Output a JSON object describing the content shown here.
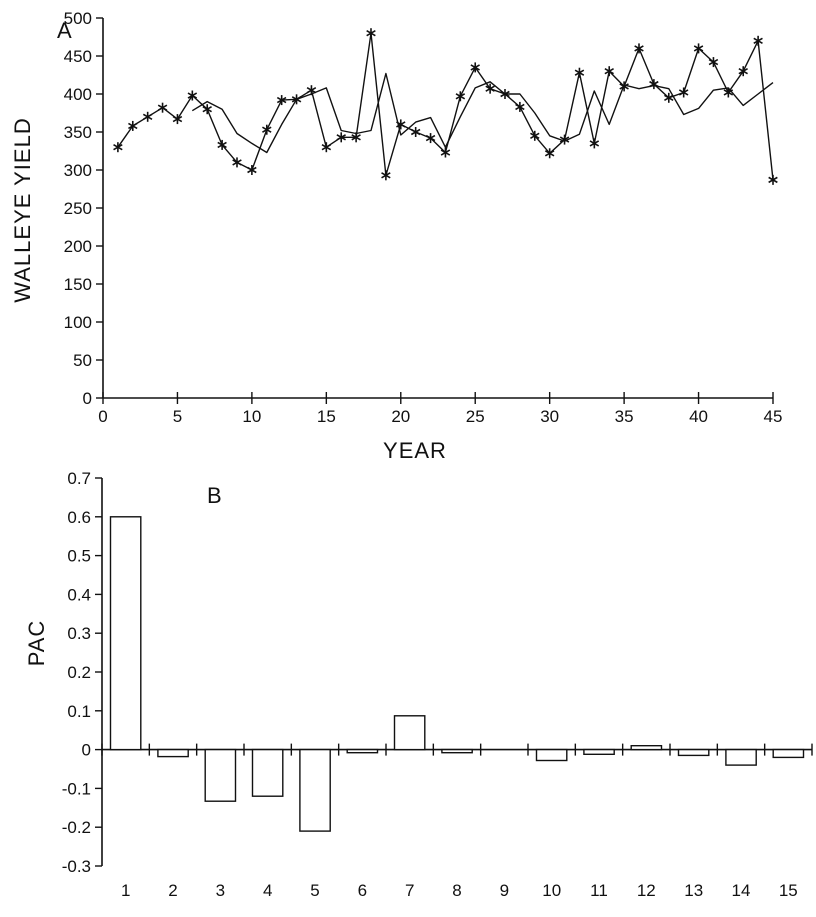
{
  "chart_data": [
    {
      "type": "line",
      "panel_label": "A",
      "xlabel": "YEAR",
      "ylabel": "WALLEYE YIELD",
      "xlim": [
        0,
        45
      ],
      "ylim": [
        0,
        500
      ],
      "xticks": [
        0,
        5,
        10,
        15,
        20,
        25,
        30,
        35,
        40,
        45
      ],
      "yticks": [
        0,
        50,
        100,
        150,
        200,
        250,
        300,
        350,
        400,
        450,
        500
      ],
      "legend": "none",
      "grid": false,
      "series": [
        {
          "marker": "asterisk",
          "x": [
            1,
            2,
            3,
            4,
            5,
            6,
            7,
            8,
            9,
            10,
            11,
            12,
            13,
            14,
            15,
            16,
            17,
            18,
            19,
            20,
            21,
            22,
            23,
            24,
            25,
            26,
            27,
            28,
            29,
            30,
            31,
            32,
            33,
            34,
            35,
            36,
            37,
            38,
            39,
            40,
            41,
            42,
            43,
            44,
            45
          ],
          "y": [
            330,
            358,
            370,
            382,
            367,
            398,
            380,
            333,
            310,
            300,
            353,
            392,
            393,
            405,
            330,
            343,
            343,
            480,
            293,
            360,
            350,
            342,
            323,
            397,
            435,
            407,
            400,
            383,
            345,
            322,
            340,
            428,
            335,
            430,
            410,
            460,
            413,
            395,
            402,
            460,
            442,
            402,
            430,
            470,
            287
          ]
        },
        {
          "marker": "none",
          "x": [
            6,
            7,
            8,
            9,
            10,
            11,
            12,
            13,
            14,
            15,
            16,
            17,
            18,
            19,
            20,
            21,
            22,
            23,
            24,
            25,
            26,
            27,
            28,
            29,
            30,
            31,
            32,
            33,
            34,
            35,
            36,
            37,
            38,
            39,
            40,
            41,
            42,
            43,
            44,
            45
          ],
          "y": [
            378,
            390,
            380,
            348,
            335,
            323,
            360,
            393,
            400,
            408,
            352,
            348,
            352,
            427,
            346,
            363,
            369,
            330,
            370,
            408,
            416,
            400,
            400,
            375,
            345,
            338,
            347,
            404,
            360,
            412,
            407,
            411,
            407,
            373,
            381,
            405,
            408,
            385,
            400,
            415
          ]
        }
      ]
    },
    {
      "type": "bar",
      "panel_label": "B",
      "xlabel": "",
      "ylabel": "PAC",
      "ylim": [
        -0.3,
        0.7
      ],
      "yticks": [
        "-0.3",
        "-0.2",
        "-0.1",
        "0",
        "0.1",
        "0.2",
        "0.3",
        "0.4",
        "0.5",
        "0.6",
        "0.7"
      ],
      "categories": [
        "1",
        "2",
        "3",
        "4",
        "5",
        "6",
        "7",
        "8",
        "9",
        "10",
        "11",
        "12",
        "13",
        "14",
        "15"
      ],
      "values": [
        0.6,
        -0.018,
        -0.133,
        -0.12,
        -0.21,
        -0.008,
        0.087,
        -0.008,
        0,
        -0.028,
        -0.012,
        0.01,
        -0.015,
        -0.04,
        -0.02
      ],
      "legend": "none",
      "grid": false
    }
  ]
}
